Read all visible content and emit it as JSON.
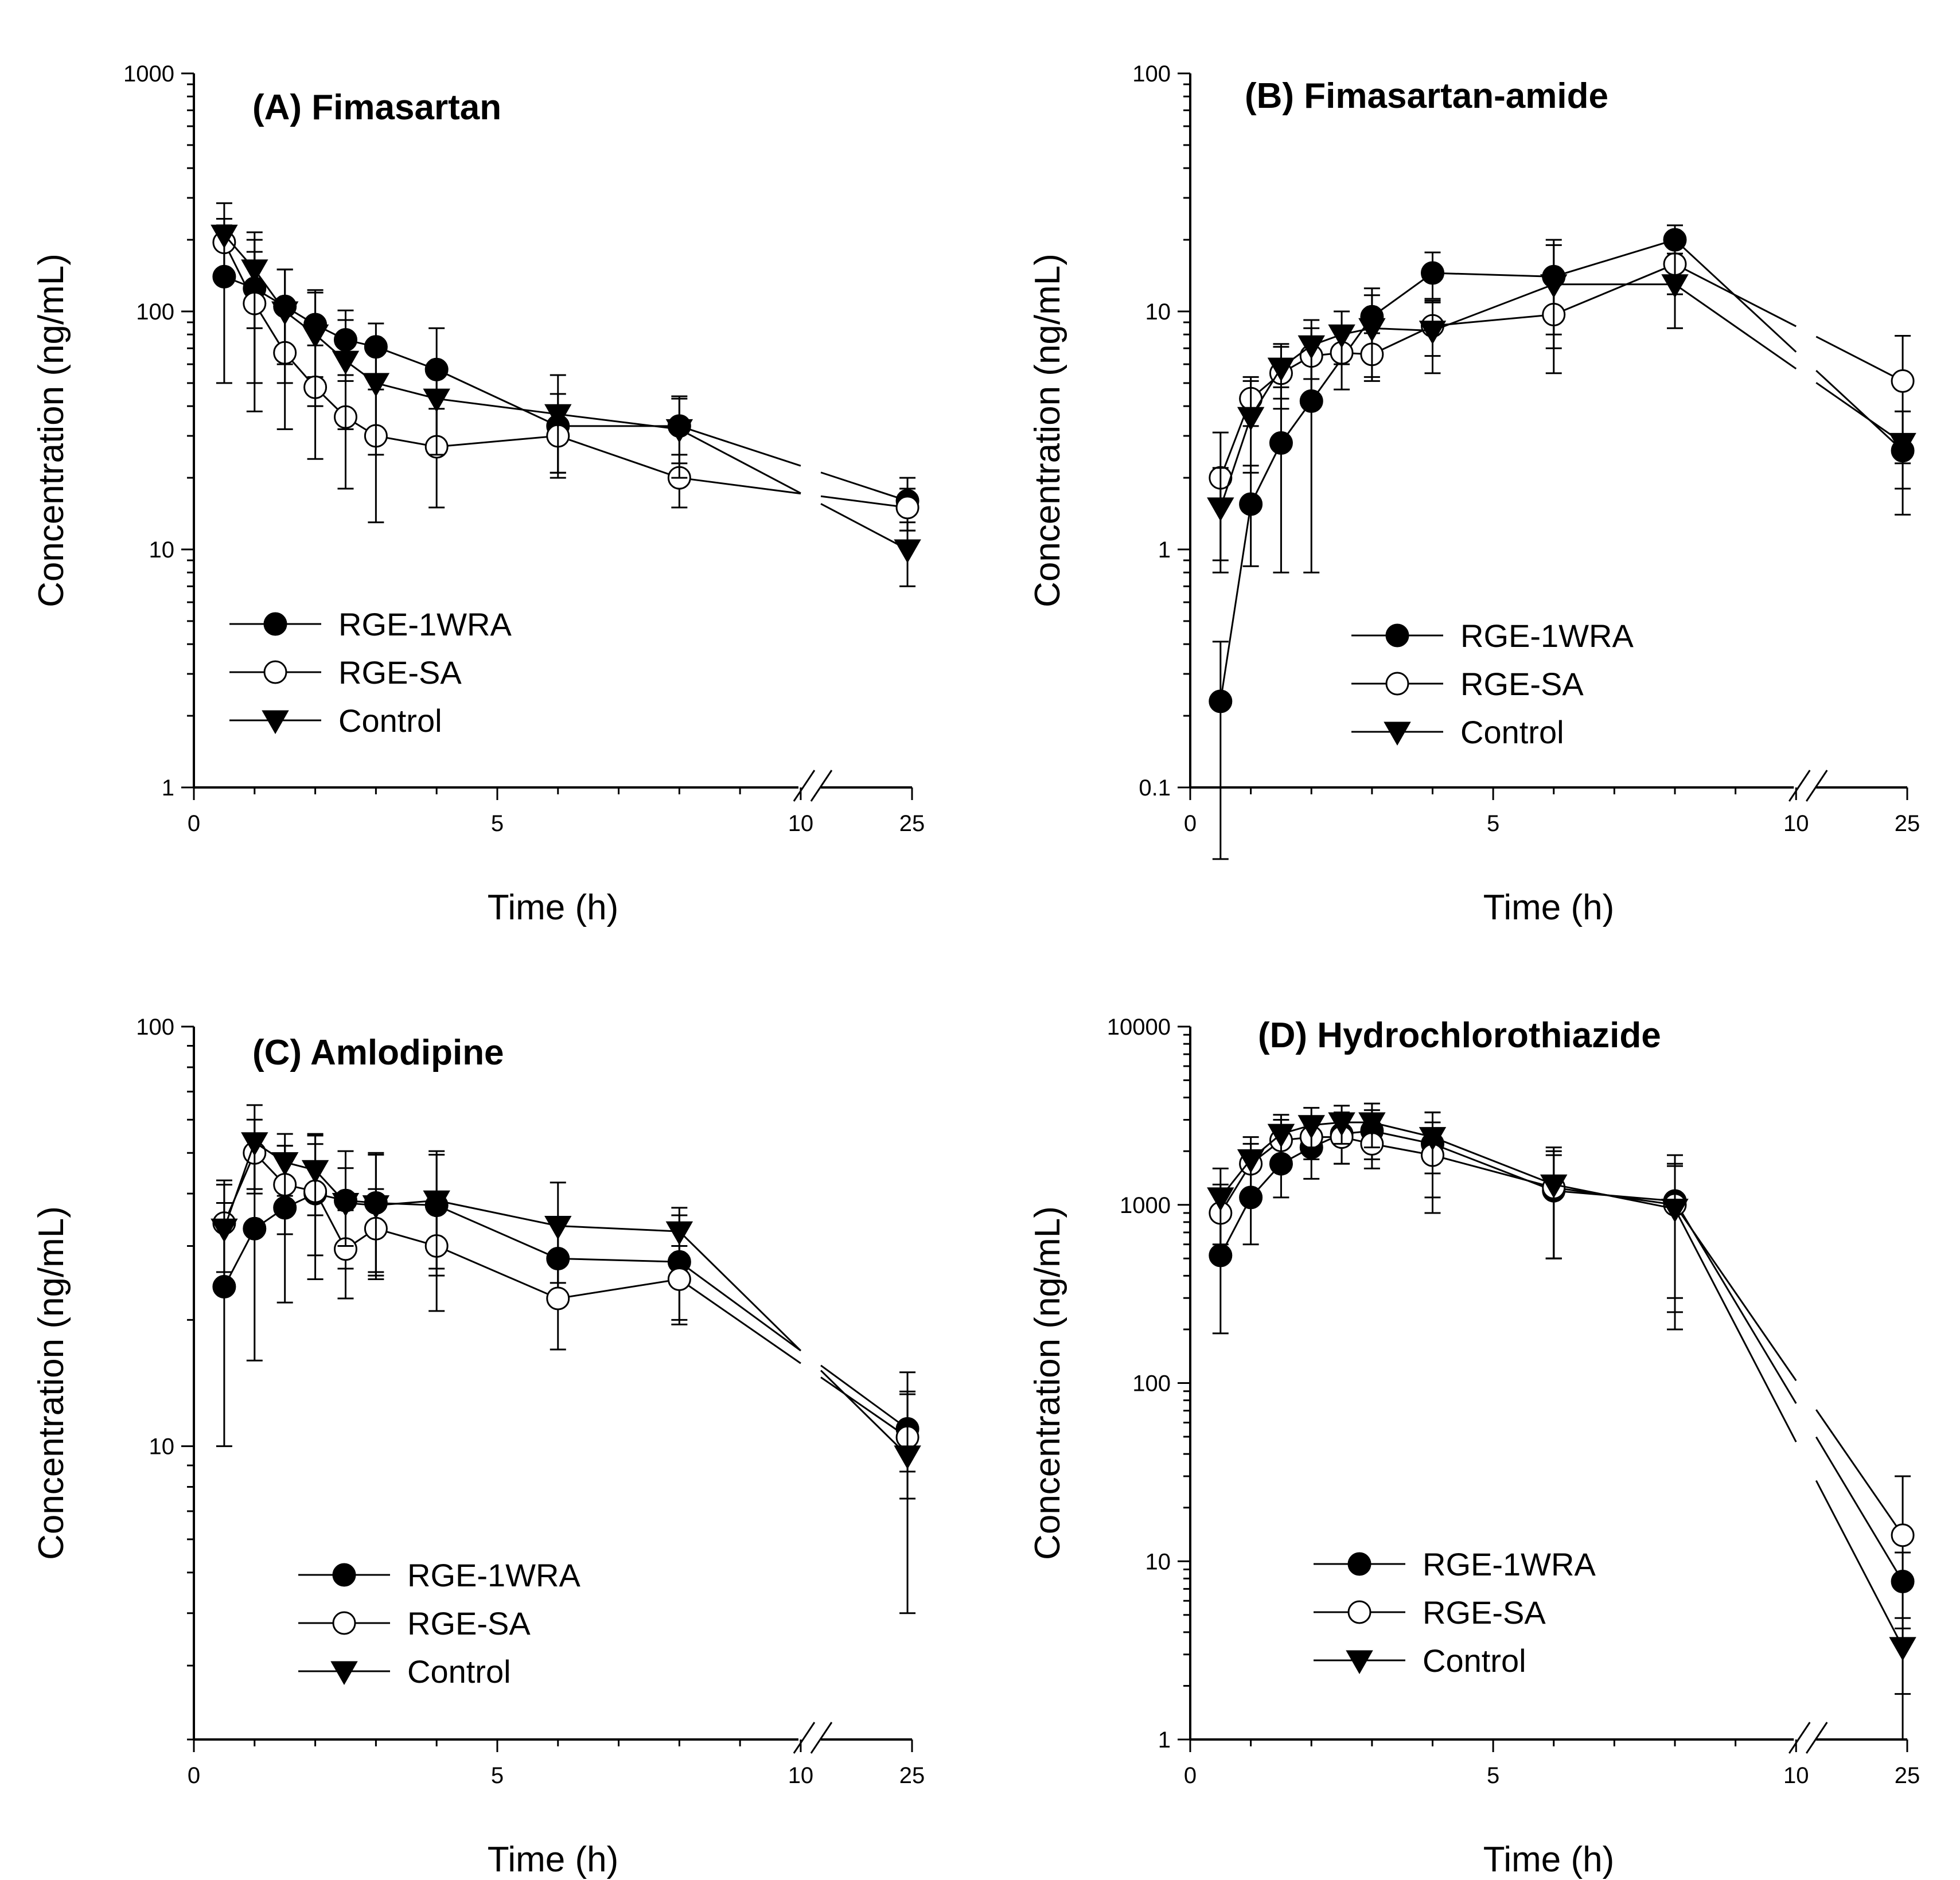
{
  "chart_data": [
    {
      "type": "line",
      "panel": "A",
      "title": "(A) Fimasartan",
      "xlabel": "Time (h)",
      "ylabel": "Concentration (ng/mL)",
      "yscale": "log",
      "ylim": [
        1,
        1000
      ],
      "y_ticks": [
        "1",
        "10",
        "100",
        "1000"
      ],
      "x_ticks": [
        "0",
        "5",
        "10",
        "25"
      ],
      "x_axis_break": "between 10 and 25",
      "legend_position": "bottom-left",
      "series": [
        {
          "name": "RGE-1WRA",
          "marker": "filled-circle",
          "x": [
            0.5,
            1,
            1.5,
            2,
            2.5,
            3,
            4,
            6,
            8,
            24
          ],
          "y": [
            140,
            125,
            105,
            88,
            76,
            71,
            57,
            33,
            33,
            16
          ],
          "err": [
            90,
            75,
            45,
            35,
            25,
            18,
            28,
            12,
            10,
            4
          ]
        },
        {
          "name": "RGE-SA",
          "marker": "open-circle",
          "x": [
            0.5,
            1,
            1.5,
            2,
            2.5,
            3,
            4,
            6,
            8,
            24
          ],
          "y": [
            195,
            108,
            67,
            48,
            36,
            30,
            27,
            30,
            20,
            15
          ],
          "err": [
            50,
            70,
            35,
            24,
            18,
            17,
            12,
            9,
            5,
            3
          ]
        },
        {
          "name": "Control",
          "marker": "filled-triangle-down",
          "x": [
            0.5,
            1,
            1.5,
            2,
            2.5,
            3,
            4,
            6,
            8,
            24
          ],
          "y": [
            210,
            150,
            100,
            80,
            62,
            50,
            43,
            37,
            32,
            10
          ],
          "err": [
            75,
            65,
            50,
            40,
            30,
            25,
            18,
            17,
            12,
            3
          ]
        }
      ]
    },
    {
      "type": "line",
      "panel": "B",
      "title": "(B) Fimasartan-amide",
      "xlabel": "Time (h)",
      "ylabel": "Concentration (ng/mL)",
      "yscale": "log",
      "ylim": [
        0.1,
        100
      ],
      "y_ticks": [
        "0.1",
        "1",
        "10",
        "100"
      ],
      "x_ticks": [
        "0",
        "5",
        "10",
        "25"
      ],
      "x_axis_break": "between 10 and 25",
      "legend_position": "bottom-center",
      "series": [
        {
          "name": "RGE-1WRA",
          "marker": "filled-circle",
          "x": [
            0.5,
            1,
            1.5,
            2,
            3,
            4,
            6,
            8,
            24
          ],
          "y": [
            0.23,
            1.55,
            2.8,
            4.2,
            9.5,
            14.5,
            14.0,
            20.0,
            2.6
          ],
          "err": [
            0.18,
            0.7,
            2.0,
            3.4,
            3.0,
            3.2,
            6.0,
            3.0,
            1.2
          ]
        },
        {
          "name": "RGE-SA",
          "marker": "open-circle",
          "x": [
            0.5,
            1,
            1.5,
            2,
            2.5,
            3,
            4,
            6,
            8,
            24
          ],
          "y": [
            2.0,
            4.3,
            5.5,
            6.5,
            6.7,
            6.6,
            8.7,
            9.7,
            15.8,
            5.1
          ],
          "err": [
            1.1,
            1.0,
            1.6,
            2.0,
            2.0,
            1.5,
            2.2,
            4.2,
            4.0,
            2.8
          ]
        },
        {
          "name": "Control",
          "marker": "filled-triangle-down",
          "x": [
            0.5,
            1,
            1.5,
            2,
            2.5,
            3,
            4,
            6,
            8,
            24
          ],
          "y": [
            1.5,
            3.6,
            5.8,
            7.2,
            8.0,
            8.5,
            8.3,
            13.0,
            13.0,
            2.8
          ],
          "err": [
            0.7,
            1.5,
            1.5,
            2.0,
            2.0,
            3.2,
            2.8,
            6.0,
            4.5,
            1.0
          ]
        }
      ]
    },
    {
      "type": "line",
      "panel": "C",
      "title": "(C) Amlodipine",
      "xlabel": "Time (h)",
      "ylabel": "Concentration (ng/mL)",
      "yscale": "log",
      "ylim": [
        2,
        100
      ],
      "y_ticks": [
        "10",
        "100"
      ],
      "x_ticks": [
        "0",
        "5",
        "10",
        "25"
      ],
      "x_axis_break": "between 10 and 25",
      "legend_position": "bottom-left",
      "series": [
        {
          "name": "RGE-1WRA",
          "marker": "filled-circle",
          "x": [
            0.5,
            1,
            1.5,
            2,
            2.5,
            3,
            4,
            6,
            8,
            24
          ],
          "y": [
            24,
            33,
            37,
            40,
            38.5,
            38,
            37.5,
            28,
            27.5,
            11
          ],
          "err": [
            14,
            17,
            15,
            15,
            12,
            12,
            12,
            6,
            8,
            2.3
          ]
        },
        {
          "name": "RGE-SA",
          "marker": "open-circle",
          "x": [
            0.5,
            1,
            1.5,
            2,
            2.5,
            3,
            4,
            6,
            8,
            24
          ],
          "y": [
            34,
            50,
            42,
            40.5,
            29.5,
            33,
            30,
            22.5,
            25,
            10.5
          ],
          "err": [
            8,
            10,
            10,
            12,
            7,
            8,
            9,
            5.5,
            5,
            3
          ]
        },
        {
          "name": "Control",
          "marker": "filled-triangle-down",
          "x": [
            0.5,
            1,
            1.5,
            2,
            2.5,
            3,
            4,
            6,
            8,
            24
          ],
          "y": [
            33,
            53,
            47.5,
            45.5,
            38,
            37.5,
            38.5,
            33.5,
            32.5,
            9.5
          ],
          "err": [
            10,
            12,
            8,
            10,
            8,
            12,
            12,
            9,
            4.5,
            5.5
          ]
        }
      ]
    },
    {
      "type": "line",
      "panel": "D",
      "title": "(D) Hydrochlorothiazide",
      "xlabel": "Time (h)",
      "ylabel": "Concentration (ng/mL)",
      "yscale": "log",
      "ylim": [
        1,
        10000
      ],
      "y_ticks": [
        "1",
        "10",
        "100",
        "1000",
        "10000"
      ],
      "x_ticks": [
        "0",
        "5",
        "10",
        "25"
      ],
      "x_axis_break": "between 10 and 25",
      "legend_position": "bottom-left",
      "series": [
        {
          "name": "RGE-1WRA",
          "marker": "filled-circle",
          "x": [
            0.5,
            1,
            1.5,
            2,
            2.5,
            3,
            4,
            6,
            8,
            24
          ],
          "y": [
            520,
            1100,
            1700,
            2100,
            2500,
            2600,
            2200,
            1200,
            1050,
            7.7
          ],
          "err": [
            330,
            500,
            600,
            700,
            800,
            800,
            1100,
            700,
            850,
            3.5
          ]
        },
        {
          "name": "RGE-SA",
          "marker": "open-circle",
          "x": [
            0.5,
            1,
            1.5,
            2,
            2.5,
            3,
            4,
            6,
            8,
            24
          ],
          "y": [
            900,
            1700,
            2300,
            2400,
            2400,
            2200,
            1900,
            1250,
            1000,
            14
          ],
          "err": [
            400,
            500,
            700,
            600,
            700,
            600,
            1000,
            750,
            700,
            16
          ]
        },
        {
          "name": "Control",
          "marker": "filled-triangle-down",
          "x": [
            0.5,
            1,
            1.5,
            2,
            2.5,
            3,
            4,
            6,
            8,
            24
          ],
          "y": [
            1100,
            1800,
            2500,
            2800,
            2900,
            2900,
            2400,
            1300,
            950,
            3.3
          ],
          "err": [
            500,
            600,
            700,
            700,
            700,
            800,
            900,
            800,
            700,
            1.5
          ]
        }
      ]
    }
  ]
}
